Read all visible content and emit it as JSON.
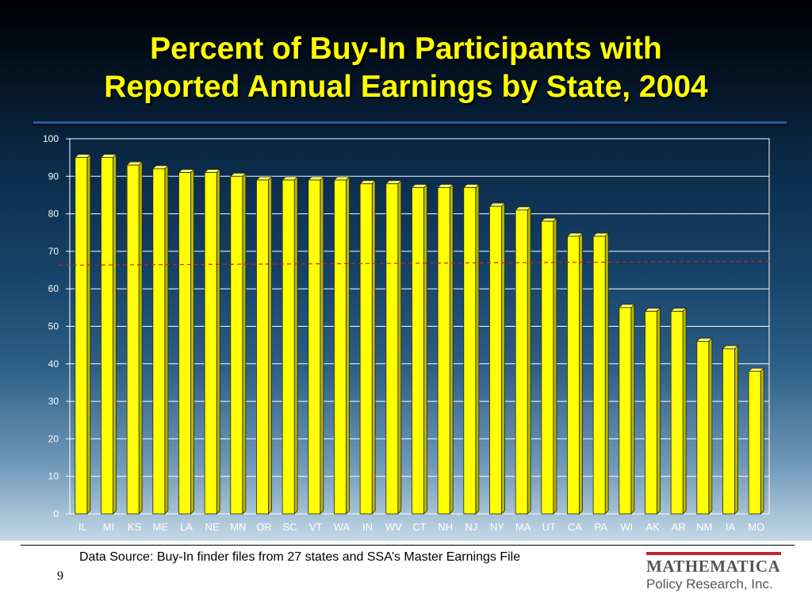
{
  "slide": {
    "title_line1": "Percent of Buy-In Participants with",
    "title_line2": "Reported Annual Earnings by State, 2004",
    "source_note": "Data Source: Buy-In finder files from 27 states and SSA’s Master Earnings File",
    "page_number": "9",
    "logo_name": "MATHEMATICA",
    "logo_subtitle": "Policy Research, Inc."
  },
  "colors": {
    "bar_fill": "#ffff00",
    "bar_side": "#b8b800",
    "reference_line": "#cc2222",
    "title": "#ffff00",
    "logo_bar": "#c1272d"
  },
  "chart_data": {
    "type": "bar",
    "title": "Percent of Buy-In Participants with Reported Annual Earnings by State, 2004",
    "xlabel": "",
    "ylabel": "",
    "ylim": [
      0,
      100
    ],
    "yticks": [
      0,
      10,
      20,
      30,
      40,
      50,
      60,
      70,
      80,
      90,
      100
    ],
    "grid": true,
    "legend": "none",
    "categories": [
      "IL",
      "MI",
      "KS",
      "ME",
      "LA",
      "NE",
      "MN",
      "OR",
      "SC",
      "VT",
      "WA",
      "IN",
      "WV",
      "CT",
      "NH",
      "NJ",
      "NY",
      "MA",
      "UT",
      "CA",
      "PA",
      "WI",
      "AK",
      "AR",
      "NM",
      "IA",
      "MO"
    ],
    "values": [
      95,
      95,
      93,
      92,
      91,
      91,
      90,
      89,
      89,
      89,
      89,
      88,
      88,
      87,
      87,
      87,
      82,
      81,
      78,
      74,
      74,
      55,
      54,
      54,
      46,
      44,
      38
    ],
    "reference_line": 66.5
  }
}
